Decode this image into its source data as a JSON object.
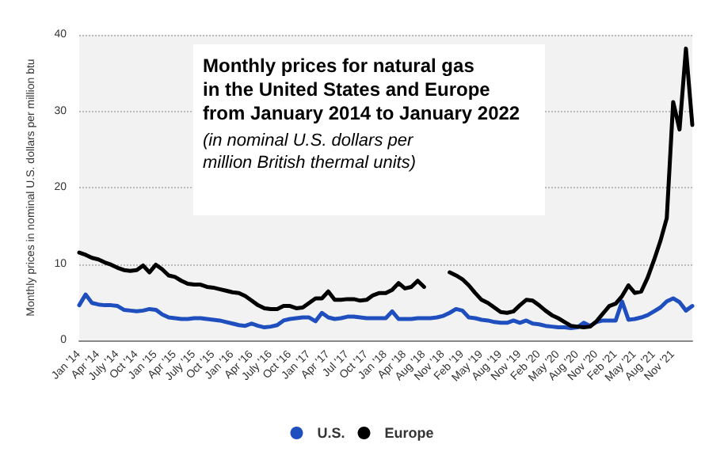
{
  "chart_data": {
    "type": "line",
    "title": "Monthly prices for natural gas\nin the United States and Europe\nfrom January 2014 to January 2022",
    "subtitle": "(in nominal U.S. dollars per\nmillion British thermal units)",
    "ylabel": "Monthly prices in nominal U.S. dollars per million btu",
    "categories": [
      "Jan '14",
      null,
      null,
      "Apr '14",
      null,
      null,
      "July '14",
      null,
      null,
      "Oct '14",
      null,
      null,
      "Jan '15",
      null,
      null,
      "Apr '15",
      null,
      null,
      "July '15",
      null,
      null,
      "Oct '15",
      null,
      null,
      "Jan '16",
      null,
      null,
      "Apr '16",
      null,
      null,
      "July '16",
      null,
      null,
      "Oct '16",
      null,
      null,
      "Jan '17",
      null,
      null,
      "Apr '17",
      null,
      null,
      "Jul '17",
      null,
      null,
      "Oct '17",
      null,
      null,
      "Jan '18",
      null,
      null,
      "Apr '18",
      null,
      null,
      "Aug '18",
      null,
      null,
      "Nov '18",
      null,
      null,
      "Feb '19",
      null,
      null,
      "May '19",
      null,
      null,
      "Aug '19",
      null,
      null,
      "Nov '19",
      null,
      null,
      "Feb '20",
      null,
      null,
      "May '20",
      null,
      null,
      "Aug '20",
      null,
      null,
      "Nov '20",
      null,
      null,
      "Feb '21",
      null,
      null,
      "May '21",
      null,
      null,
      "Aug '21",
      null,
      null,
      "Nov '21",
      null,
      null,
      null
    ],
    "series": [
      {
        "name": "U.S.",
        "color": "#1f4fbf",
        "values": [
          4.6,
          6.0,
          4.9,
          4.7,
          4.6,
          4.6,
          4.5,
          4.0,
          3.9,
          3.8,
          3.9,
          4.1,
          4.0,
          3.4,
          3.0,
          2.9,
          2.8,
          2.8,
          2.9,
          2.9,
          2.8,
          2.7,
          2.6,
          2.4,
          2.2,
          2.0,
          1.9,
          2.2,
          1.9,
          1.7,
          1.8,
          2.0,
          2.6,
          2.8,
          2.9,
          3.0,
          3.0,
          2.5,
          3.6,
          3.0,
          2.8,
          2.9,
          3.1,
          3.1,
          3.0,
          2.9,
          2.9,
          2.9,
          2.9,
          3.8,
          2.8,
          2.8,
          2.8,
          2.9,
          2.9,
          2.9,
          3.0,
          3.2,
          3.6,
          4.1,
          3.9,
          3.0,
          2.9,
          2.7,
          2.6,
          2.4,
          2.3,
          2.3,
          2.6,
          2.3,
          2.6,
          2.2,
          2.1,
          1.9,
          1.8,
          1.7,
          1.7,
          1.6,
          1.7,
          2.3,
          1.9,
          2.4,
          2.6,
          2.6,
          2.6,
          5.1,
          2.7,
          2.8,
          3.0,
          3.3,
          3.8,
          4.3,
          5.1,
          5.5,
          5.0,
          3.9,
          4.5
        ]
      },
      {
        "name": "Europe",
        "color": "#000000",
        "values": [
          11.5,
          11.2,
          10.8,
          10.6,
          10.2,
          9.9,
          9.5,
          9.2,
          9.1,
          9.2,
          9.8,
          8.9,
          9.9,
          9.3,
          8.5,
          8.3,
          7.8,
          7.4,
          7.3,
          7.3,
          7.0,
          6.9,
          6.7,
          6.5,
          6.3,
          6.2,
          5.8,
          5.2,
          4.6,
          4.2,
          4.1,
          4.1,
          4.5,
          4.5,
          4.2,
          4.3,
          4.9,
          5.5,
          5.5,
          6.4,
          5.3,
          5.3,
          5.4,
          5.4,
          5.2,
          5.3,
          5.9,
          6.2,
          6.2,
          6.6,
          7.5,
          6.8,
          7.0,
          7.8,
          7.0,
          null,
          null,
          null,
          8.9,
          8.5,
          8.0,
          7.2,
          6.2,
          5.3,
          4.9,
          4.3,
          3.7,
          3.6,
          3.8,
          4.6,
          5.3,
          5.2,
          4.6,
          3.9,
          3.3,
          2.9,
          2.4,
          1.9,
          1.8,
          1.7,
          1.8,
          2.5,
          3.5,
          4.5,
          4.8,
          5.8,
          7.2,
          6.2,
          6.4,
          8.2,
          10.5,
          13.0,
          16.0,
          31.2,
          27.6,
          38.2,
          28.2
        ]
      }
    ],
    "ylim": [
      0,
      40
    ],
    "yticks": [
      0,
      10,
      20,
      30,
      40
    ],
    "grid": "y",
    "legend": "bottom",
    "marker": "none",
    "line_style": "solid"
  }
}
